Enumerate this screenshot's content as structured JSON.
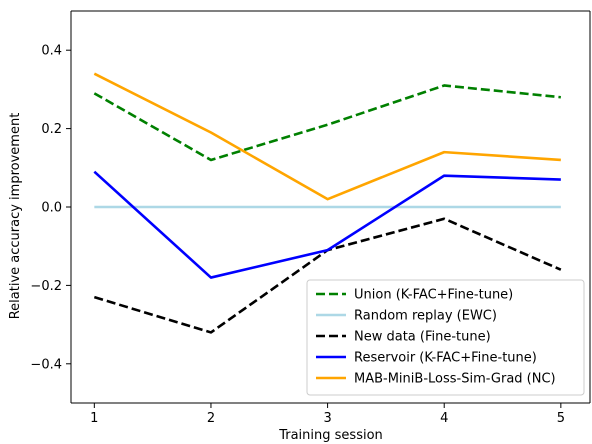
{
  "chart_data": {
    "type": "line",
    "title": "",
    "xlabel": "Training session",
    "ylabel": "Relative accuracy improvement",
    "x": [
      1,
      2,
      3,
      4,
      5
    ],
    "xticks": [
      "1",
      "2",
      "3",
      "4",
      "5"
    ],
    "xlim": [
      0.8,
      5.25
    ],
    "ylim": [
      -0.5,
      0.5
    ],
    "yticks": [
      "−0.4",
      "−0.2",
      "0.0",
      "0.2",
      "0.4"
    ],
    "ytick_values": [
      -0.4,
      -0.2,
      0.0,
      0.2,
      0.4
    ],
    "grid": false,
    "legend_position": "lower-right",
    "series": [
      {
        "name": "Union (K-FAC+Fine-tune)",
        "values": [
          0.29,
          0.12,
          0.21,
          0.31,
          0.28
        ],
        "color": "#008000",
        "style": "dashed"
      },
      {
        "name": "Random replay (EWC)",
        "values": [
          0.0,
          0.0,
          0.0,
          0.0,
          0.0
        ],
        "color": "#add8e6",
        "style": "solid"
      },
      {
        "name": "New data (Fine-tune)",
        "values": [
          -0.23,
          -0.32,
          -0.11,
          -0.03,
          -0.16
        ],
        "color": "#000000",
        "style": "dashed"
      },
      {
        "name": "Reservoir (K-FAC+Fine-tune)",
        "values": [
          0.09,
          -0.18,
          -0.11,
          0.08,
          0.07
        ],
        "color": "#0000ff",
        "style": "solid"
      },
      {
        "name": "MAB-MiniB-Loss-Sim-Grad (NC)",
        "values": [
          0.34,
          0.19,
          0.02,
          0.14,
          0.12
        ],
        "color": "#ffa500",
        "style": "solid"
      }
    ]
  }
}
